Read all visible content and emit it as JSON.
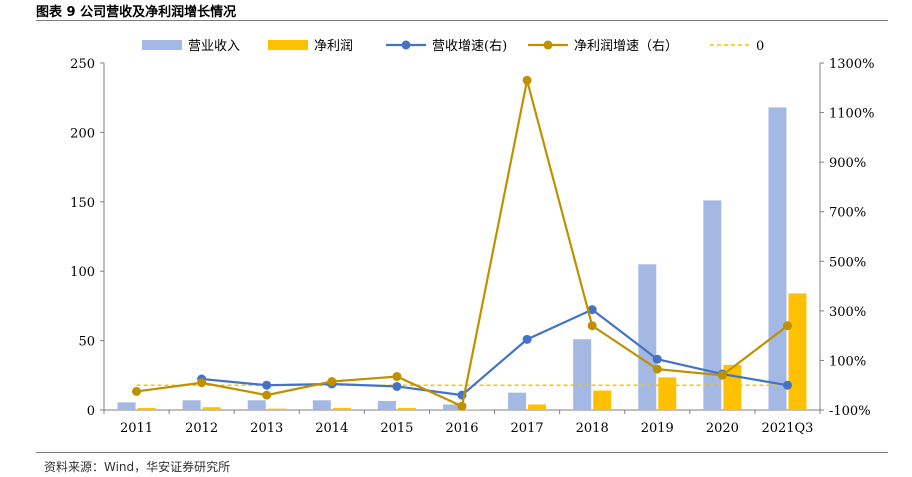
{
  "figure": {
    "title": "图表 9 公司营收及净利润增长情况",
    "source": "资料来源：Wind，华安证券研究所"
  },
  "chart_data": {
    "type": "bar",
    "categories": [
      "2011",
      "2012",
      "2013",
      "2014",
      "2015",
      "2016",
      "2017",
      "2018",
      "2019",
      "2020",
      "2021Q3"
    ],
    "series": [
      {
        "name": "营业收入",
        "kind": "bar",
        "axis": "left",
        "color": "#a4b8e4",
        "values": [
          5.5,
          7,
          7,
          7,
          6.5,
          4,
          12.5,
          51,
          105,
          151,
          218
        ]
      },
      {
        "name": "净利润",
        "kind": "bar",
        "axis": "left",
        "color": "#ffc000",
        "values": [
          1.5,
          2,
          1,
          1.5,
          1.5,
          0.5,
          4,
          14,
          23.5,
          32.5,
          84
        ]
      },
      {
        "name": "营收增速(右)",
        "kind": "line",
        "axis": "right",
        "color": "#4472c4",
        "values": [
          null,
          25,
          0,
          5,
          -5,
          -40,
          185,
          305,
          105,
          45,
          0
        ]
      },
      {
        "name": "净利润增速（右）",
        "kind": "line",
        "axis": "right",
        "color": "#bf9000",
        "values": [
          -25,
          10,
          -40,
          15,
          35,
          -85,
          1230,
          240,
          65,
          40,
          240
        ]
      },
      {
        "name": "0",
        "kind": "hline",
        "axis": "right",
        "color": "#ffc000",
        "value": 0
      }
    ],
    "y_left": {
      "min": 0,
      "max": 250,
      "ticks": [
        "0",
        "50",
        "100",
        "150",
        "200",
        "250"
      ]
    },
    "y_right": {
      "min": -100,
      "max": 1300,
      "ticks": [
        "-100%",
        "100%",
        "300%",
        "500%",
        "700%",
        "900%",
        "1100%",
        "1300%"
      ]
    },
    "legend_position": "top"
  }
}
